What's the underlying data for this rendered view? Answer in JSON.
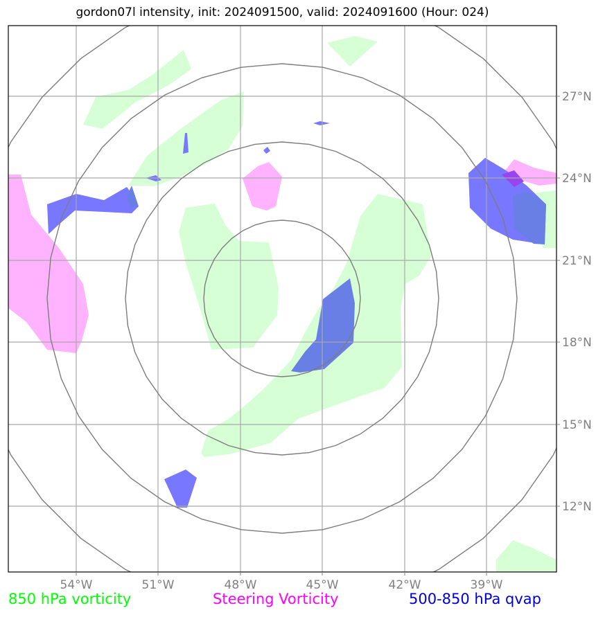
{
  "title": "gordon07l intensity, init: 2024091500, valid: 2024091600 (Hour: 024)",
  "map": {
    "lon_labels": [
      "54°W",
      "51°W",
      "48°W",
      "45°W",
      "42°W",
      "39°W"
    ],
    "lat_labels": [
      "27°N",
      "24°N",
      "21°N",
      "18°N",
      "15°N",
      "12°N"
    ],
    "gridline_color": "#a0a0a0",
    "ring_color": "#808080",
    "field_colors": {
      "vorticity_850": "#ccffcc",
      "steering_vorticity": "#ff99ff",
      "qvap_500_850": "#5555ff"
    }
  },
  "legend": {
    "vorticity_850": "850 hPa vorticity",
    "steering": "Steering Vorticity",
    "qvap": "500-850 hPa qvap"
  }
}
